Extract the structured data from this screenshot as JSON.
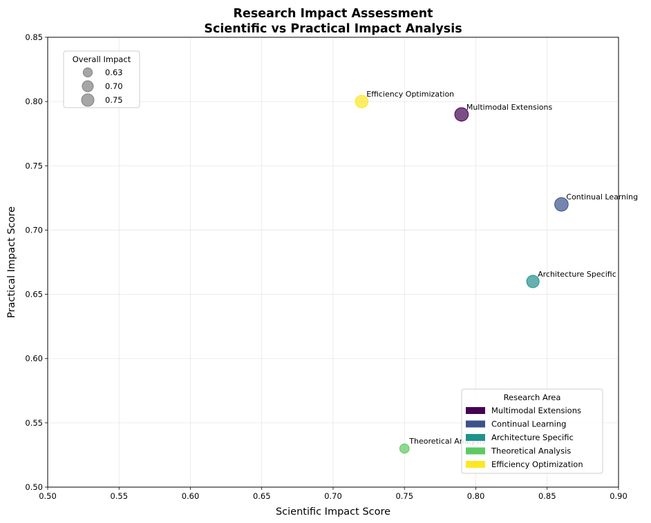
{
  "chart_data": {
    "type": "scatter",
    "title": "Research Impact Assessment",
    "subtitle": "Scientific vs Practical Impact Analysis",
    "xlabel": "Scientific Impact Score",
    "ylabel": "Practical Impact Score",
    "xlim": [
      0.5,
      0.9
    ],
    "ylim": [
      0.5,
      0.85
    ],
    "xticks": [
      "0.50",
      "0.55",
      "0.60",
      "0.65",
      "0.70",
      "0.75",
      "0.80",
      "0.85",
      "0.90"
    ],
    "yticks": [
      "0.50",
      "0.55",
      "0.60",
      "0.65",
      "0.70",
      "0.75",
      "0.80",
      "0.85"
    ],
    "grid": true,
    "points": [
      {
        "label": "Multimodal Extensions",
        "x": 0.79,
        "y": 0.79,
        "overall_impact": 0.79,
        "color": "#440154"
      },
      {
        "label": "Continual Learning",
        "x": 0.86,
        "y": 0.72,
        "overall_impact": 0.79,
        "color": "#3b528b"
      },
      {
        "label": "Architecture Specific",
        "x": 0.84,
        "y": 0.66,
        "overall_impact": 0.75,
        "color": "#21918c"
      },
      {
        "label": "Theoretical Analysis",
        "x": 0.75,
        "y": 0.53,
        "overall_impact": 0.64,
        "color": "#5ec962"
      },
      {
        "label": "Efficiency Optimization",
        "x": 0.72,
        "y": 0.8,
        "overall_impact": 0.76,
        "color": "#fde725"
      }
    ],
    "size_legend": {
      "title": "Overall Impact",
      "placement": "top-left",
      "entries": [
        "0.63",
        "0.70",
        "0.75"
      ],
      "color": "#808080"
    },
    "color_legend": {
      "title": "Research Area",
      "placement": "bottom-right",
      "entries": [
        {
          "label": "Multimodal Extensions",
          "color": "#440154"
        },
        {
          "label": "Continual Learning",
          "color": "#3b528b"
        },
        {
          "label": "Architecture Specific",
          "color": "#21918c"
        },
        {
          "label": "Theoretical Analysis",
          "color": "#5ec962"
        },
        {
          "label": "Efficiency Optimization",
          "color": "#fde725"
        }
      ]
    }
  }
}
